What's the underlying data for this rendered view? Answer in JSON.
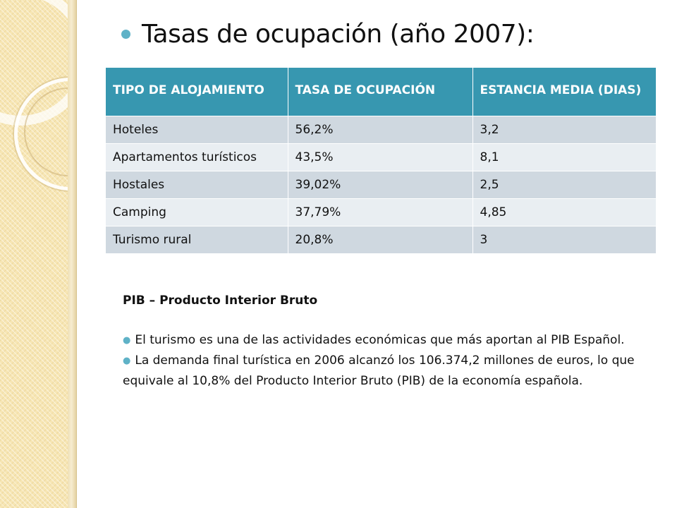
{
  "title": "Tasas de ocupación (año 2007):",
  "table": {
    "headers": [
      "TIPO DE ALOJAMIENTO",
      "TASA DE OCUPACIÓN",
      "ESTANCIA MEDIA (DIAS)"
    ],
    "rows": [
      [
        "Hoteles",
        "56,2%",
        "3,2"
      ],
      [
        "Apartamentos turísticos",
        "43,5%",
        "8,1"
      ],
      [
        "Hostales",
        "39,02%",
        "2,5"
      ],
      [
        "Camping",
        "37,79%",
        "4,85"
      ],
      [
        "Turismo rural",
        "20,8%",
        "3"
      ]
    ]
  },
  "pib": {
    "heading": "PIB – Producto Interior Bruto",
    "bullets": [
      "El turismo es una de las actividades económicas que más aportan al PIB Español.",
      "La demanda final turística en 2006 alcanzó los 106.374,2 millones de euros, lo que equivale al 10,8% del Producto Interior Bruto (PIB) de la economía española."
    ]
  },
  "colors": {
    "accent": "#3797b0",
    "bullet": "#5fb2c7",
    "row_odd": "#cfd8e0",
    "row_even": "#e9eef2",
    "sidebar": "#f7e6b4"
  }
}
